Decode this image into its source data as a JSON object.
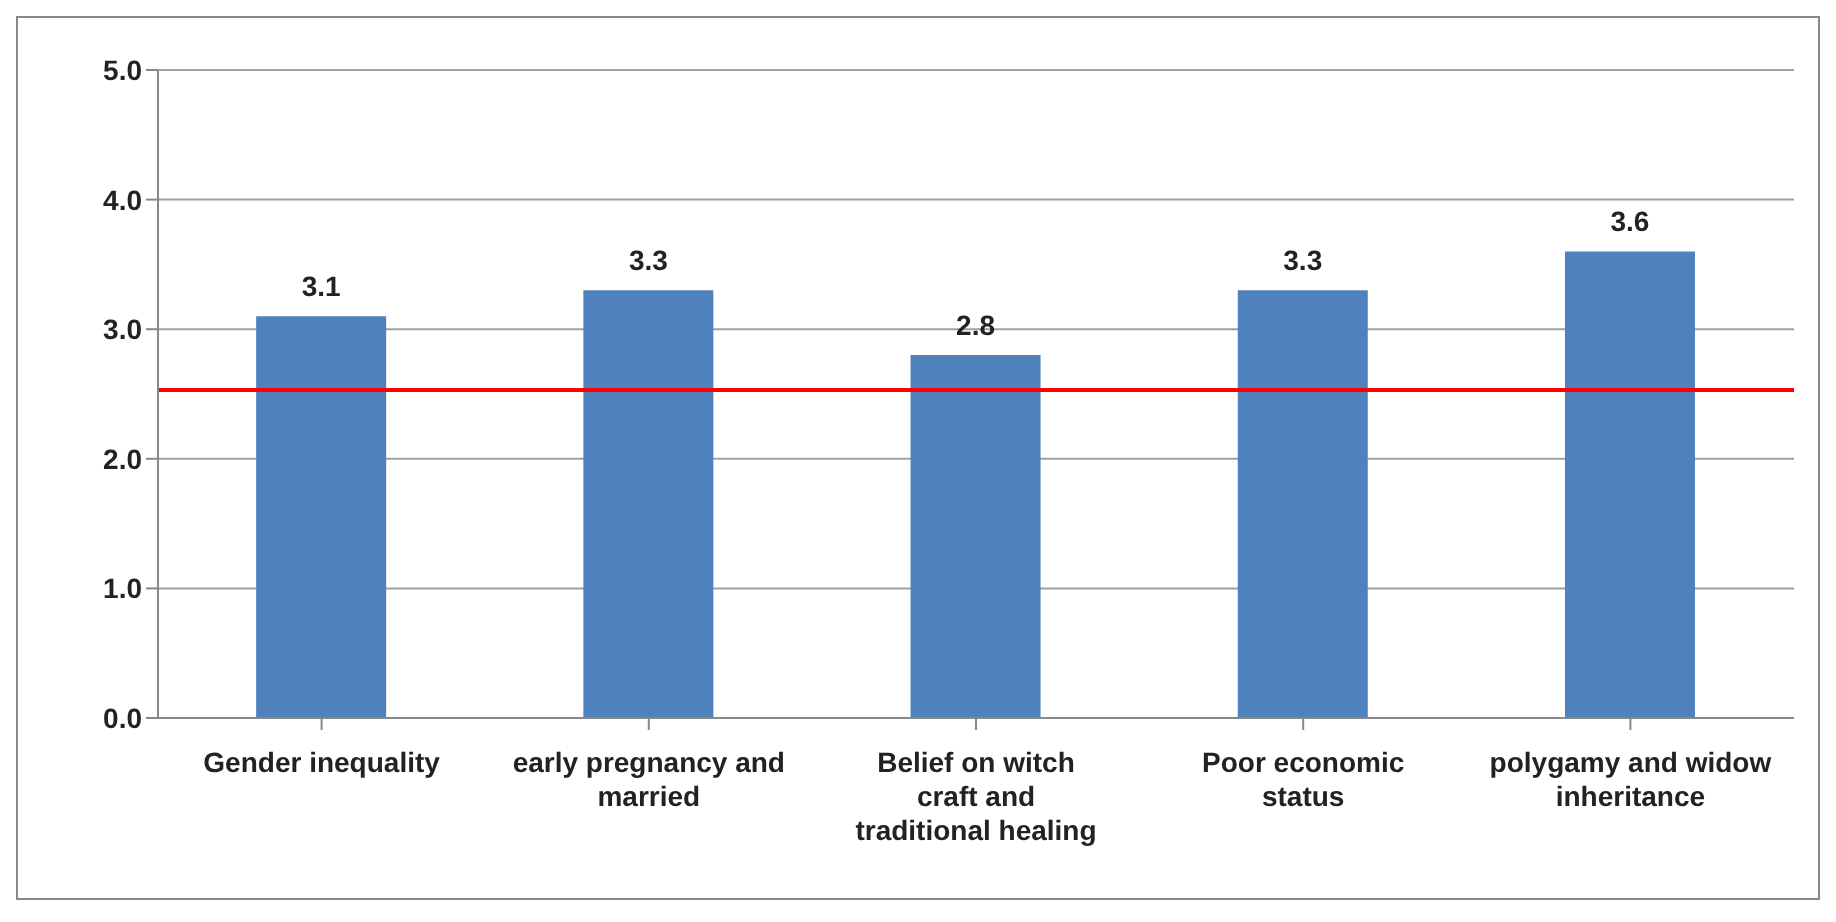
{
  "chart_data": {
    "type": "bar",
    "categories": [
      "Gender inequality",
      "early pregnancy and married",
      "Belief on witch craft and traditional healing",
      "Poor economic status",
      "polygamy and widow inheritance"
    ],
    "values": [
      3.1,
      3.3,
      2.8,
      3.3,
      3.6
    ],
    "color": "#4f81bd",
    "data_labels": true,
    "ylim": [
      0,
      5
    ],
    "yticks": [
      {
        "value": 0,
        "label": "0.0"
      },
      {
        "value": 1,
        "label": "1.0"
      },
      {
        "value": 2,
        "label": "2.0"
      },
      {
        "value": 3,
        "label": "3.0"
      },
      {
        "value": 4,
        "label": "4.0"
      },
      {
        "value": 5,
        "label": "5.0"
      }
    ],
    "grid": "y",
    "ref_lines": [
      {
        "axis": "y",
        "value": 2.53,
        "color": "#ff0000"
      }
    ]
  }
}
